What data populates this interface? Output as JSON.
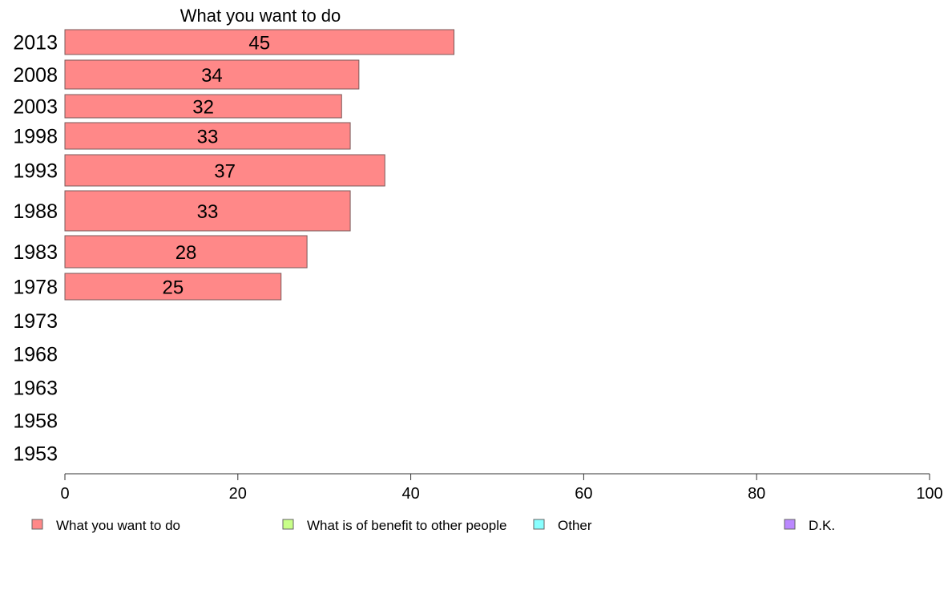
{
  "chart_data": {
    "type": "bar",
    "orientation": "horizontal",
    "title": "What you want to do",
    "categories": [
      "2013",
      "2008",
      "2003",
      "1998",
      "1993",
      "1988",
      "1983",
      "1978",
      "1973",
      "1968",
      "1963",
      "1958",
      "1953"
    ],
    "series": [
      {
        "name": "What you want to do",
        "color": "#ff8888",
        "values": [
          45,
          34,
          32,
          33,
          37,
          33,
          28,
          25,
          null,
          null,
          null,
          null,
          null
        ]
      }
    ],
    "data_labels": [
      "45",
      "34",
      "32",
      "33",
      "37",
      "33",
      "28",
      "25",
      "",
      "",
      "",
      "",
      ""
    ],
    "xlim": [
      0,
      100
    ],
    "xticks": [
      0,
      20,
      40,
      60,
      80,
      100
    ],
    "xtick_labels": [
      "0",
      "20",
      "40",
      "60",
      "80",
      "100"
    ],
    "grid": false,
    "legend_position": "bottom",
    "legend": [
      {
        "label": "What you want to do",
        "color": "#ff8888"
      },
      {
        "label": "What is of benefit to other people",
        "color": "#c8ff88"
      },
      {
        "label": "Other",
        "color": "#88ffff"
      },
      {
        "label": "D.K.",
        "color": "#bb88ff"
      }
    ]
  }
}
